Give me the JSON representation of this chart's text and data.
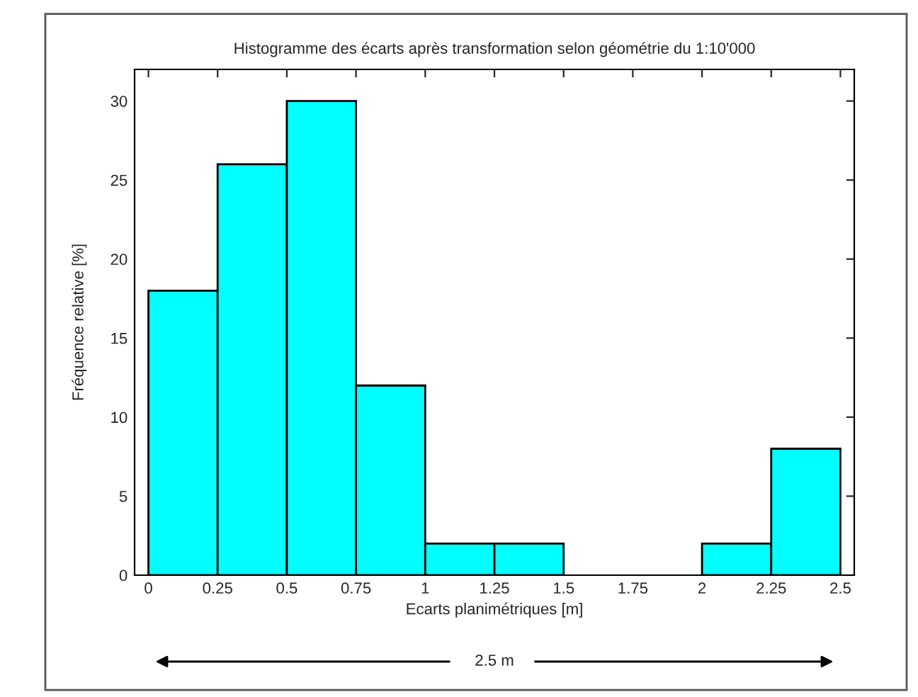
{
  "chart_data": {
    "type": "histogram",
    "title": "Histogramme des écarts après transformation selon géométrie du 1:10'000",
    "xlabel": "Ecarts planimétriques [m]",
    "ylabel": "Fréquence relative [%]",
    "bins": [
      0,
      0.25,
      0.5,
      0.75,
      1,
      1.25,
      1.5,
      1.75,
      2,
      2.25,
      2.5
    ],
    "values": [
      18,
      26,
      30,
      12,
      2,
      2,
      0,
      0,
      2,
      8
    ],
    "color": "#00ffff",
    "xlim": [
      -0.05,
      2.55
    ],
    "xticks": [
      0,
      0.25,
      0.5,
      0.75,
      1,
      1.25,
      1.5,
      1.75,
      2,
      2.25,
      2.5
    ],
    "ylim": [
      0,
      32
    ],
    "yticks": [
      0,
      5,
      10,
      15,
      20,
      25,
      30
    ],
    "grid": false,
    "annotations": [
      "2.5 m"
    ]
  }
}
